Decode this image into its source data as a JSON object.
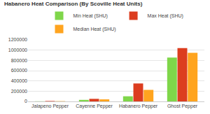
{
  "chart_data": {
    "type": "bar",
    "title": "Habanero Heat Comparison (By Scoville Heat Units)",
    "categories": [
      "Jalapeno Pepper",
      "Cayenne Pepper",
      "Habanero Pepper",
      "Ghost Pepper"
    ],
    "series": [
      {
        "name": "Min Heat (SHU)",
        "color": "#7fd64a",
        "values": [
          2500,
          30000,
          100000,
          855000
        ]
      },
      {
        "name": "Max Heat (SHU)",
        "color": "#dc3d1f",
        "values": [
          8000,
          50000,
          350000,
          1041427
        ]
      },
      {
        "name": "Median Heat (SHU)",
        "color": "#ffa41f",
        "values": [
          5000,
          40000,
          225000,
          948000
        ]
      }
    ],
    "ylim": [
      0,
      1200000
    ],
    "yticks": [
      0,
      200000,
      400000,
      600000,
      800000,
      1000000,
      1200000
    ],
    "grid": true,
    "legend": "top"
  }
}
